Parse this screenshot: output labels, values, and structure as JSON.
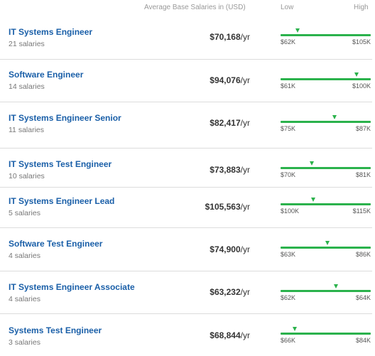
{
  "header": {
    "average_label": "Average Base Salaries in (USD)",
    "low_label": "Low",
    "high_label": "High"
  },
  "rows": [
    {
      "title": "IT Systems Engineer",
      "count": "21 salaries",
      "salary": "$70,168",
      "per": "/yr",
      "low": "$62K",
      "high": "$105K",
      "marker": 0.19
    },
    {
      "title": "Software Engineer",
      "count": "14 salaries",
      "salary": "$94,076",
      "per": "/yr",
      "low": "$61K",
      "high": "$100K",
      "marker": 0.85
    },
    {
      "title": "IT Systems Engineer Senior",
      "count": "11 salaries",
      "salary": "$82,417",
      "per": "/yr",
      "low": "$75K",
      "high": "$87K",
      "marker": 0.6
    },
    {
      "title": "IT Systems Test Engineer",
      "count": "10 salaries",
      "salary": "$73,883",
      "per": "/yr",
      "low": "$70K",
      "high": "$81K",
      "marker": 0.35
    },
    {
      "title": "IT Systems Engineer Lead",
      "count": "5 salaries",
      "salary": "$105,563",
      "per": "/yr",
      "low": "$100K",
      "high": "$115K",
      "marker": 0.37
    },
    {
      "title": "Software Test Engineer",
      "count": "4 salaries",
      "salary": "$74,900",
      "per": "/yr",
      "low": "$63K",
      "high": "$86K",
      "marker": 0.52
    },
    {
      "title": "IT Systems Engineer Associate",
      "count": "4 salaries",
      "salary": "$63,232",
      "per": "/yr",
      "low": "$62K",
      "high": "$64K",
      "marker": 0.62
    },
    {
      "title": "Systems Test Engineer",
      "count": "3 salaries",
      "salary": "$68,844",
      "per": "/yr",
      "low": "$66K",
      "high": "$84K",
      "marker": 0.16
    }
  ],
  "colors": {
    "accent": "#2bb24c",
    "link": "#1a5fa8"
  }
}
